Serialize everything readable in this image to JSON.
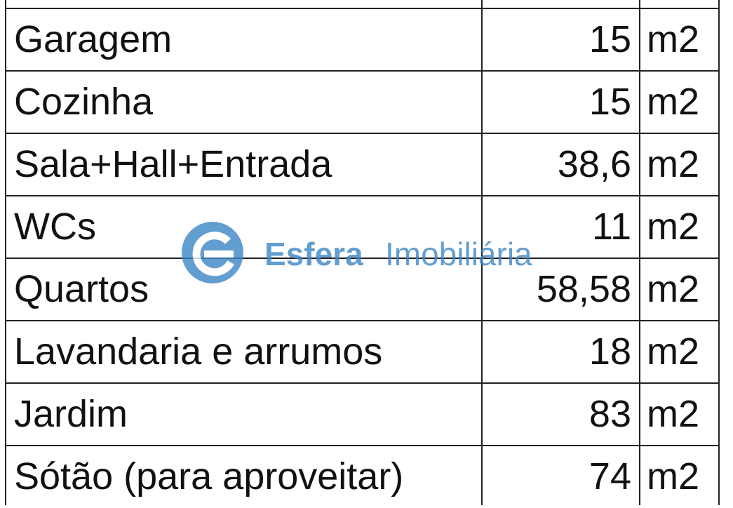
{
  "table": {
    "rows": [
      [
        "Garagem",
        "15",
        "m2"
      ],
      [
        "Cozinha",
        "15",
        "m2"
      ],
      [
        "Sala+Hall+Entrada",
        "38,6",
        "m2"
      ],
      [
        "WCs",
        "11",
        "m2"
      ],
      [
        "Quartos",
        "58,58",
        "m2"
      ],
      [
        "Lavandaria e arrumos",
        "18",
        "m2"
      ],
      [
        "Jardim",
        "83",
        "m2"
      ],
      [
        "Sótão (para aproveitar)",
        "74",
        "m2"
      ]
    ]
  },
  "watermark": {
    "brand": "Esfera",
    "tagline": "Imobiliária"
  }
}
